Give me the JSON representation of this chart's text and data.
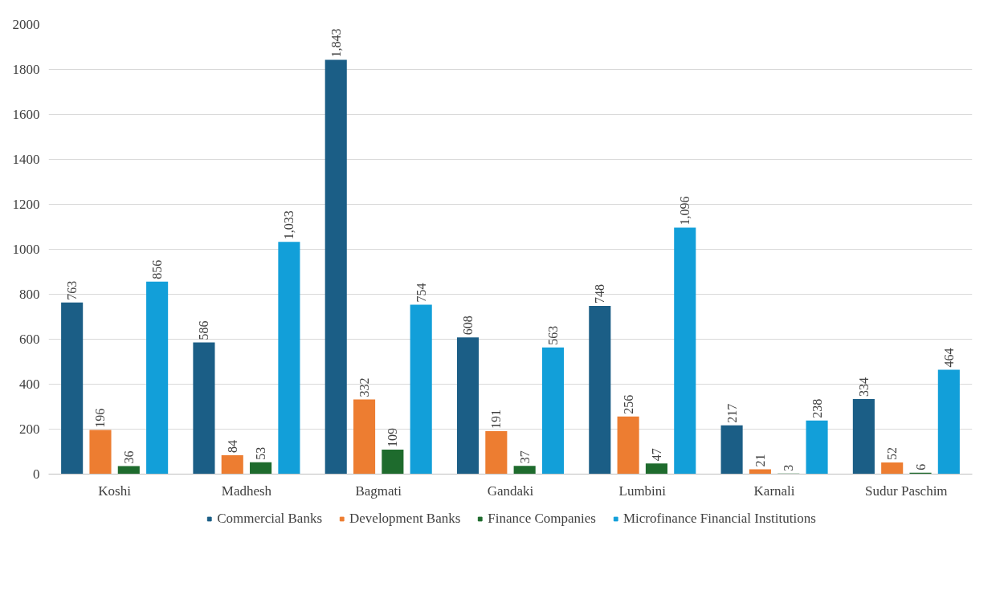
{
  "chart_data": {
    "type": "bar",
    "categories": [
      "Koshi",
      "Madhesh",
      "Bagmati",
      "Gandaki",
      "Lumbini",
      "Karnali",
      "Sudur Paschim"
    ],
    "series": [
      {
        "name": "Commercial Banks",
        "color": "#1b5e86",
        "values": [
          763,
          586,
          1843,
          608,
          748,
          217,
          334
        ],
        "value_labels": [
          "763",
          "586",
          "1,843",
          "608",
          "748",
          "217",
          "334"
        ]
      },
      {
        "name": "Development Banks",
        "color": "#ed7d31",
        "values": [
          196,
          84,
          332,
          191,
          256,
          21,
          52
        ],
        "value_labels": [
          "196",
          "84",
          "332",
          "191",
          "256",
          "21",
          "52"
        ]
      },
      {
        "name": "Finance Companies",
        "color": "#1e6b2d",
        "values": [
          36,
          53,
          109,
          37,
          47,
          3,
          6
        ],
        "value_labels": [
          "36",
          "53",
          "109",
          "37",
          "47",
          "3",
          "6"
        ]
      },
      {
        "name": "Microfinance Financial Institutions",
        "color": "#129fd9",
        "values": [
          856,
          1033,
          754,
          563,
          1096,
          238,
          464
        ],
        "value_labels": [
          "856",
          "1,033",
          "754",
          "563",
          "1,096",
          "238",
          "464"
        ]
      }
    ],
    "ylim": [
      0,
      2000
    ],
    "yticks": [
      0,
      200,
      400,
      600,
      800,
      1000,
      1200,
      1400,
      1600,
      1800,
      2000
    ],
    "grid": "y",
    "legend": "bottom"
  }
}
